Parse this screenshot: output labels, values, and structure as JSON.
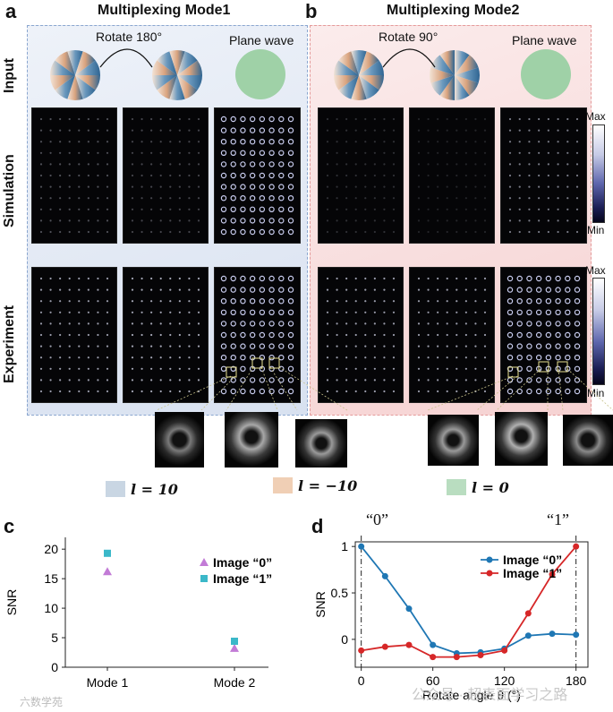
{
  "panel_a": {
    "letter": "a",
    "title": "Multiplexing Mode1",
    "rotate_text": "Rotate 180°",
    "plane_text": "Plane wave"
  },
  "panel_b": {
    "letter": "b",
    "title": "Multiplexing Mode2",
    "rotate_text": "Rotate 90°",
    "plane_text": "Plane wave"
  },
  "row_labels": {
    "input": "Input",
    "simulation": "Simulation",
    "experiment": "Experiment"
  },
  "colorbar": {
    "max": "Max",
    "min": "Min"
  },
  "legend": [
    {
      "label": "l = 10",
      "color": "#c9d6e3"
    },
    {
      "label": "l = −10",
      "color": "#f0cfb5"
    },
    {
      "label": "l = 0",
      "color": "#b9ddc0"
    }
  ],
  "colors": {
    "panel_a_bg": "#dfe7f3",
    "panel_b_bg": "#f9dede",
    "blue": "#1f77b4",
    "red": "#d62728",
    "purple": "#c27bd6",
    "teal": "#3bb8c9",
    "plane": "#9fd1a7"
  },
  "panel_c": {
    "letter": "c"
  },
  "panel_d": {
    "letter": "d",
    "top_label_left": "“0”",
    "top_label_right": "“1”"
  },
  "chart_data": [
    {
      "type": "scatter",
      "ylabel": "SNR",
      "categories": [
        "Mode 1",
        "Mode 2"
      ],
      "ylim": [
        0,
        22
      ],
      "yticks": [
        0,
        5,
        10,
        15,
        20
      ],
      "legend_position": "top-right",
      "series": [
        {
          "name": "Image “0”",
          "marker": "triangle",
          "values": [
            16.2,
            3.2
          ]
        },
        {
          "name": "Image “1”",
          "marker": "square",
          "values": [
            19.3,
            4.4
          ]
        }
      ]
    },
    {
      "type": "line",
      "xlabel": "Rotate angle θ (°)",
      "ylabel": "SNR",
      "xlim": [
        -5,
        190
      ],
      "ylim": [
        -0.3,
        1.05
      ],
      "xticks": [
        0,
        60,
        120,
        180
      ],
      "yticks": [
        0,
        0.5,
        1
      ],
      "legend_position": "top-right",
      "series": [
        {
          "name": "Image “0”",
          "x": [
            0,
            20,
            40,
            60,
            80,
            100,
            120,
            140,
            160,
            180
          ],
          "values": [
            1.0,
            0.68,
            0.33,
            -0.06,
            -0.15,
            -0.14,
            -0.1,
            0.04,
            0.06,
            0.05
          ]
        },
        {
          "name": "Image “1”",
          "x": [
            0,
            20,
            40,
            60,
            80,
            100,
            120,
            140,
            160,
            180
          ],
          "values": [
            -0.12,
            -0.08,
            -0.06,
            -0.19,
            -0.19,
            -0.17,
            -0.12,
            0.28,
            0.7,
            1.0
          ]
        }
      ]
    }
  ],
  "watermark_left": "六数学苑",
  "watermark_right": "公众号 · 超表面学习之路"
}
